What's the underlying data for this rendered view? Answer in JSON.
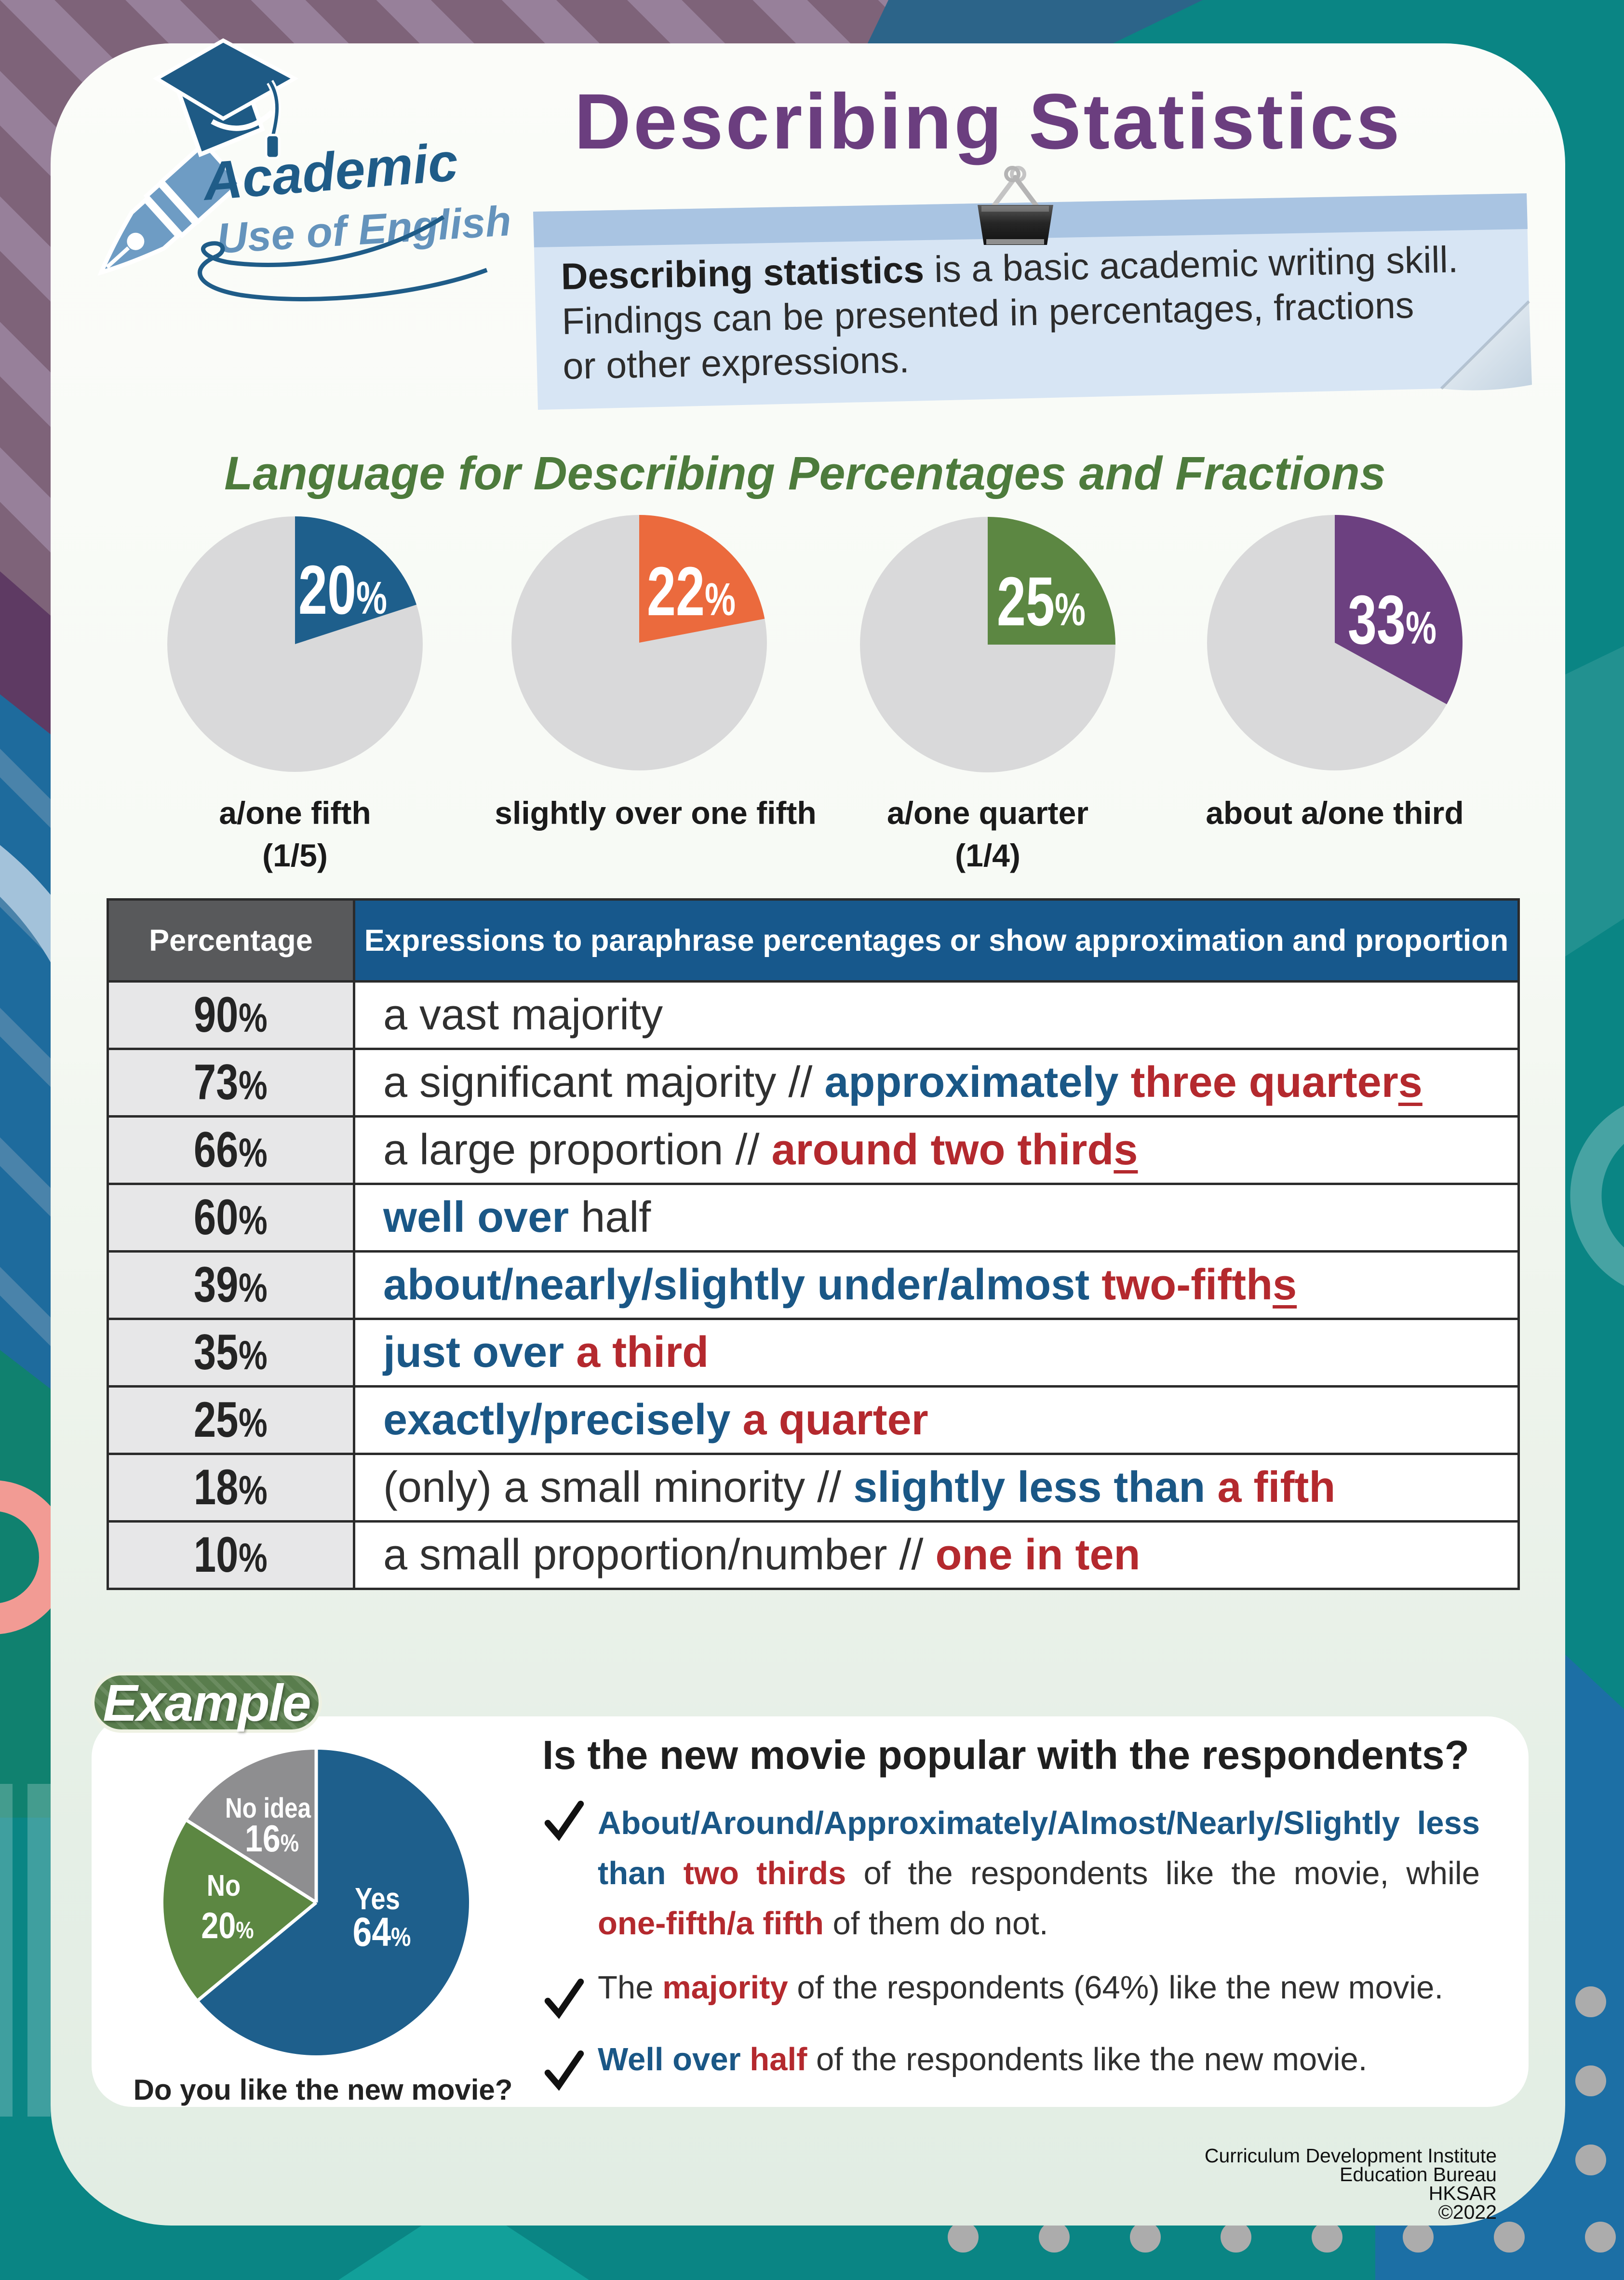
{
  "header": {
    "title": "Describing Statistics",
    "logo_line1": "Academic",
    "logo_line2": "Use of English"
  },
  "note": {
    "bold_lead": "Describing statistics",
    "line1_rest": " is a basic academic writing skill.",
    "line2": "Findings can be presented in percentages, fractions",
    "line3": "or other expressions."
  },
  "section_heading": "Language for Describing Percentages and Fractions",
  "percent_sign": "%",
  "chart_data": [
    {
      "type": "pie",
      "values": [
        20,
        80
      ],
      "labels": [
        "20%",
        "other"
      ],
      "colors": [
        "#1E5F8C",
        "#D9D9DA"
      ],
      "caption_lines": [
        "a/one fifth",
        "(1/5)"
      ],
      "label_value": "20"
    },
    {
      "type": "pie",
      "values": [
        22,
        78
      ],
      "labels": [
        "22%",
        "other"
      ],
      "colors": [
        "#EB6A3D",
        "#D9D9DA"
      ],
      "caption_lines": [
        "slightly over one fifth"
      ],
      "label_value": "22"
    },
    {
      "type": "pie",
      "values": [
        25,
        75
      ],
      "labels": [
        "25%",
        "other"
      ],
      "colors": [
        "#5C8742",
        "#D9D9DA"
      ],
      "caption_lines": [
        "a/one quarter",
        "(1/4)"
      ],
      "label_value": "25"
    },
    {
      "type": "pie",
      "values": [
        33,
        67
      ],
      "labels": [
        "33%",
        "other"
      ],
      "colors": [
        "#6C4080",
        "#D9D9DA"
      ],
      "caption_lines": [
        "about a/one third"
      ],
      "label_value": "33"
    },
    {
      "type": "pie",
      "title": "Do you like the new movie?",
      "categories": [
        "Yes",
        "No",
        "No idea"
      ],
      "values": [
        64,
        20,
        16
      ],
      "colors": [
        "#1E5F8C",
        "#5C8742",
        "#8E8E90"
      ],
      "labels": [
        "Yes 64%",
        "No 20%",
        "No idea 16%"
      ]
    }
  ],
  "table": {
    "headers": [
      "Percentage",
      "Expressions to paraphrase percentages or show approximation and proportion"
    ],
    "rows": [
      {
        "pct": "90",
        "segments": [
          [
            "a vast majority",
            "sp"
          ]
        ]
      },
      {
        "pct": "73",
        "segments": [
          [
            "a significant majority // ",
            "sp"
          ],
          [
            "approximately ",
            "sb"
          ],
          [
            "three quarter",
            "sr"
          ],
          [
            "s",
            "sru"
          ]
        ]
      },
      {
        "pct": "66",
        "segments": [
          [
            "a large proportion // ",
            "sp"
          ],
          [
            "around two third",
            "sr"
          ],
          [
            "s",
            "sru"
          ]
        ]
      },
      {
        "pct": "60",
        "segments": [
          [
            "well over ",
            "sb"
          ],
          [
            "half",
            "sp"
          ]
        ]
      },
      {
        "pct": "39",
        "segments": [
          [
            "about/nearly/slightly under/almost ",
            "sb"
          ],
          [
            "two-fifth",
            "sr"
          ],
          [
            "s",
            "sru"
          ]
        ]
      },
      {
        "pct": "35",
        "segments": [
          [
            "just over ",
            "sb"
          ],
          [
            "a third",
            "sr"
          ]
        ]
      },
      {
        "pct": "25",
        "segments": [
          [
            "exactly/precisely ",
            "sb"
          ],
          [
            "a quarter",
            "sr"
          ]
        ]
      },
      {
        "pct": "18",
        "segments": [
          [
            "(only) a small minority // ",
            "sp"
          ],
          [
            "slightly less than ",
            "sb"
          ],
          [
            "a fifth",
            "sr"
          ]
        ]
      },
      {
        "pct": "10",
        "segments": [
          [
            "a small proportion/number // ",
            "sp"
          ],
          [
            "one in ten",
            "sr"
          ]
        ]
      }
    ]
  },
  "example": {
    "badge": "Example",
    "pie_caption": "Do you like the new movie?",
    "question": "Is the new movie popular with the respondents?",
    "bullets": [
      {
        "single": false,
        "segments": [
          [
            "About/Around/Approximately/Almost/Nearly/Slightly less than ",
            "sb"
          ],
          [
            "two thirds ",
            "sr"
          ],
          [
            "of the respondents like the movie, while ",
            "sp"
          ],
          [
            "one-fifth/a fifth ",
            "sr"
          ],
          [
            "of them do not.",
            "sp"
          ]
        ]
      },
      {
        "single": true,
        "segments": [
          [
            "The ",
            "sp"
          ],
          [
            "majority ",
            "sr"
          ],
          [
            "of the respondents (64%) like the new movie.",
            "sp"
          ]
        ]
      },
      {
        "single": true,
        "segments": [
          [
            "Well over ",
            "sb"
          ],
          [
            "half ",
            "sr"
          ],
          [
            "of the respondents like the new movie.",
            "sp"
          ]
        ]
      }
    ]
  },
  "footer": {
    "lines": [
      "Curriculum Development Institute",
      "Education Bureau",
      "HKSAR",
      "©2022"
    ]
  },
  "colors": {
    "accent_purple": "#6B3E7F",
    "teal_background": "#0A8584",
    "note_blue": "#D7E5F4",
    "table_header_blue": "#17588C",
    "table_header_grey": "#58595B",
    "text_blue": "#1A5786",
    "text_red": "#B4292E",
    "heading_green": "#4D7B3C",
    "badge_green": "#5C8050",
    "pie_blue": "#1E5F8C",
    "pie_orange": "#EB6A3D",
    "pie_green": "#5C8742",
    "pie_purple": "#6C4080"
  }
}
